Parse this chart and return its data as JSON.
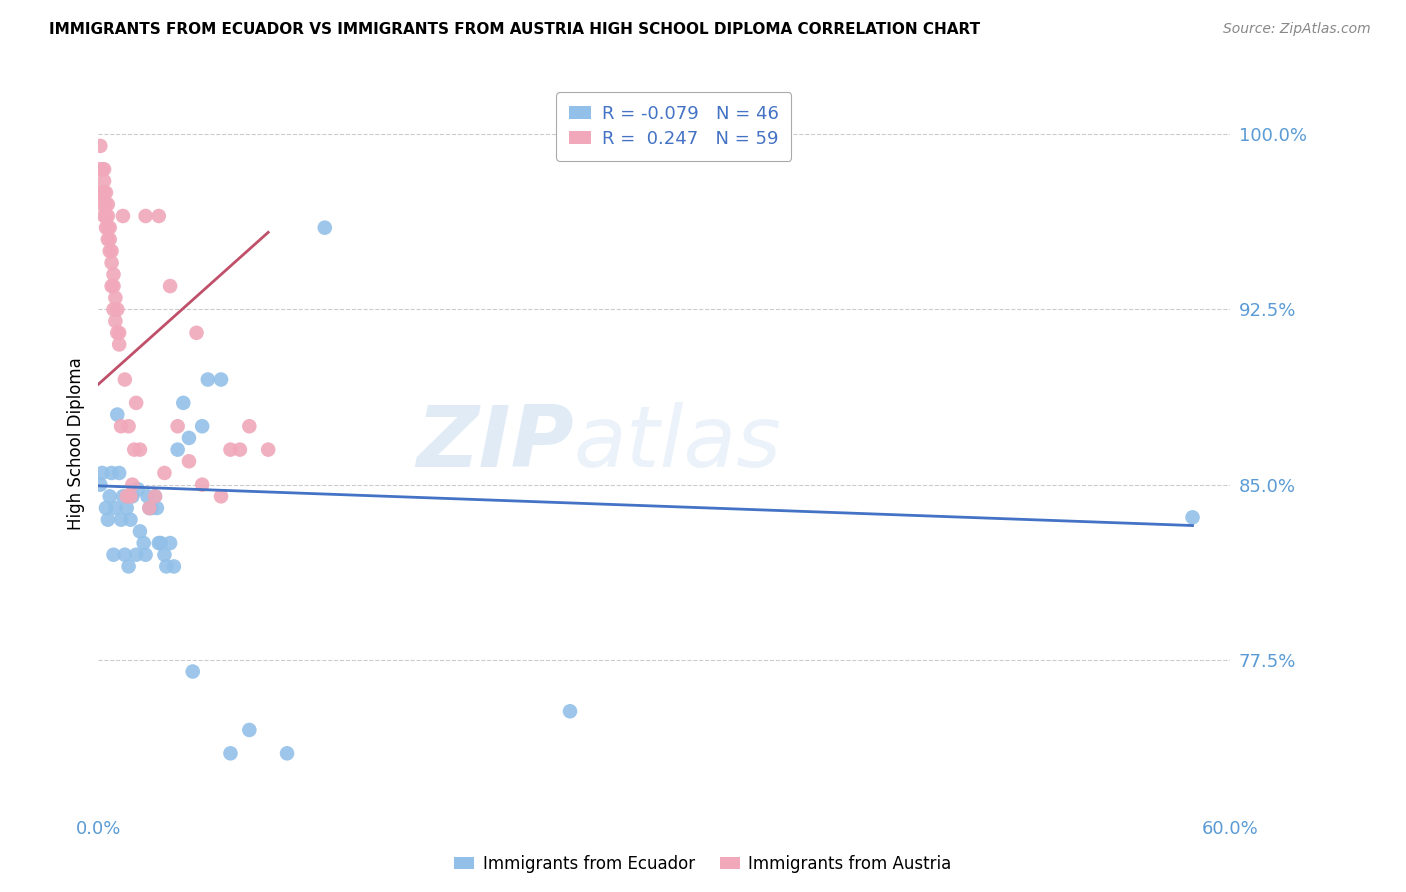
{
  "title": "IMMIGRANTS FROM ECUADOR VS IMMIGRANTS FROM AUSTRIA HIGH SCHOOL DIPLOMA CORRELATION CHART",
  "source": "Source: ZipAtlas.com",
  "ylabel": "High School Diploma",
  "ytick_vals": [
    0.775,
    0.85,
    0.925,
    1.0
  ],
  "ytick_labels": [
    "77.5%",
    "85.0%",
    "92.5%",
    "100.0%"
  ],
  "xlim": [
    0.0,
    0.6
  ],
  "ylim": [
    0.71,
    1.025
  ],
  "ecuador_color": "#92C0E8",
  "austria_color": "#F0A8BA",
  "ecuador_line_color": "#4472C4",
  "austria_line_color": "#C0506A",
  "ecuador_R": "-0.079",
  "ecuador_N": "46",
  "austria_R": "0.247",
  "austria_N": "59",
  "watermark": "ZIPatlas",
  "ecuador_x": [
    0.001,
    0.002,
    0.004,
    0.005,
    0.006,
    0.007,
    0.008,
    0.009,
    0.01,
    0.011,
    0.012,
    0.013,
    0.014,
    0.015,
    0.016,
    0.017,
    0.018,
    0.02,
    0.021,
    0.022,
    0.024,
    0.025,
    0.026,
    0.027,
    0.028,
    0.03,
    0.031,
    0.032,
    0.033,
    0.035,
    0.036,
    0.038,
    0.04,
    0.042,
    0.045,
    0.048,
    0.05,
    0.055,
    0.058,
    0.065,
    0.07,
    0.08,
    0.1,
    0.12,
    0.25,
    0.58
  ],
  "ecuador_y": [
    0.85,
    0.855,
    0.84,
    0.835,
    0.845,
    0.855,
    0.82,
    0.84,
    0.88,
    0.855,
    0.835,
    0.845,
    0.82,
    0.84,
    0.815,
    0.835,
    0.845,
    0.82,
    0.848,
    0.83,
    0.825,
    0.82,
    0.845,
    0.84,
    0.84,
    0.845,
    0.84,
    0.825,
    0.825,
    0.82,
    0.815,
    0.825,
    0.815,
    0.865,
    0.885,
    0.87,
    0.77,
    0.875,
    0.895,
    0.895,
    0.735,
    0.745,
    0.735,
    0.96,
    0.753,
    0.836
  ],
  "austria_x": [
    0.001,
    0.001,
    0.001,
    0.002,
    0.002,
    0.002,
    0.002,
    0.003,
    0.003,
    0.003,
    0.003,
    0.004,
    0.004,
    0.004,
    0.004,
    0.005,
    0.005,
    0.005,
    0.005,
    0.006,
    0.006,
    0.006,
    0.007,
    0.007,
    0.007,
    0.008,
    0.008,
    0.008,
    0.009,
    0.009,
    0.01,
    0.01,
    0.011,
    0.011,
    0.012,
    0.013,
    0.014,
    0.015,
    0.016,
    0.017,
    0.018,
    0.019,
    0.02,
    0.022,
    0.025,
    0.027,
    0.03,
    0.032,
    0.035,
    0.038,
    0.042,
    0.048,
    0.052,
    0.055,
    0.065,
    0.07,
    0.075,
    0.08,
    0.09
  ],
  "austria_y": [
    0.985,
    0.995,
    0.975,
    0.975,
    0.985,
    0.97,
    0.975,
    0.965,
    0.975,
    0.98,
    0.985,
    0.96,
    0.965,
    0.97,
    0.975,
    0.955,
    0.96,
    0.965,
    0.97,
    0.95,
    0.955,
    0.96,
    0.935,
    0.945,
    0.95,
    0.935,
    0.94,
    0.925,
    0.93,
    0.92,
    0.915,
    0.925,
    0.91,
    0.915,
    0.875,
    0.965,
    0.895,
    0.845,
    0.875,
    0.845,
    0.85,
    0.865,
    0.885,
    0.865,
    0.965,
    0.84,
    0.845,
    0.965,
    0.855,
    0.935,
    0.875,
    0.86,
    0.915,
    0.85,
    0.845,
    0.865,
    0.865,
    0.875,
    0.865
  ],
  "ecuador_line_x": [
    0.0,
    0.58
  ],
  "ecuador_line_y": [
    0.8495,
    0.8325
  ],
  "austria_line_x": [
    0.0,
    0.09
  ],
  "austria_line_y": [
    0.893,
    0.958
  ]
}
